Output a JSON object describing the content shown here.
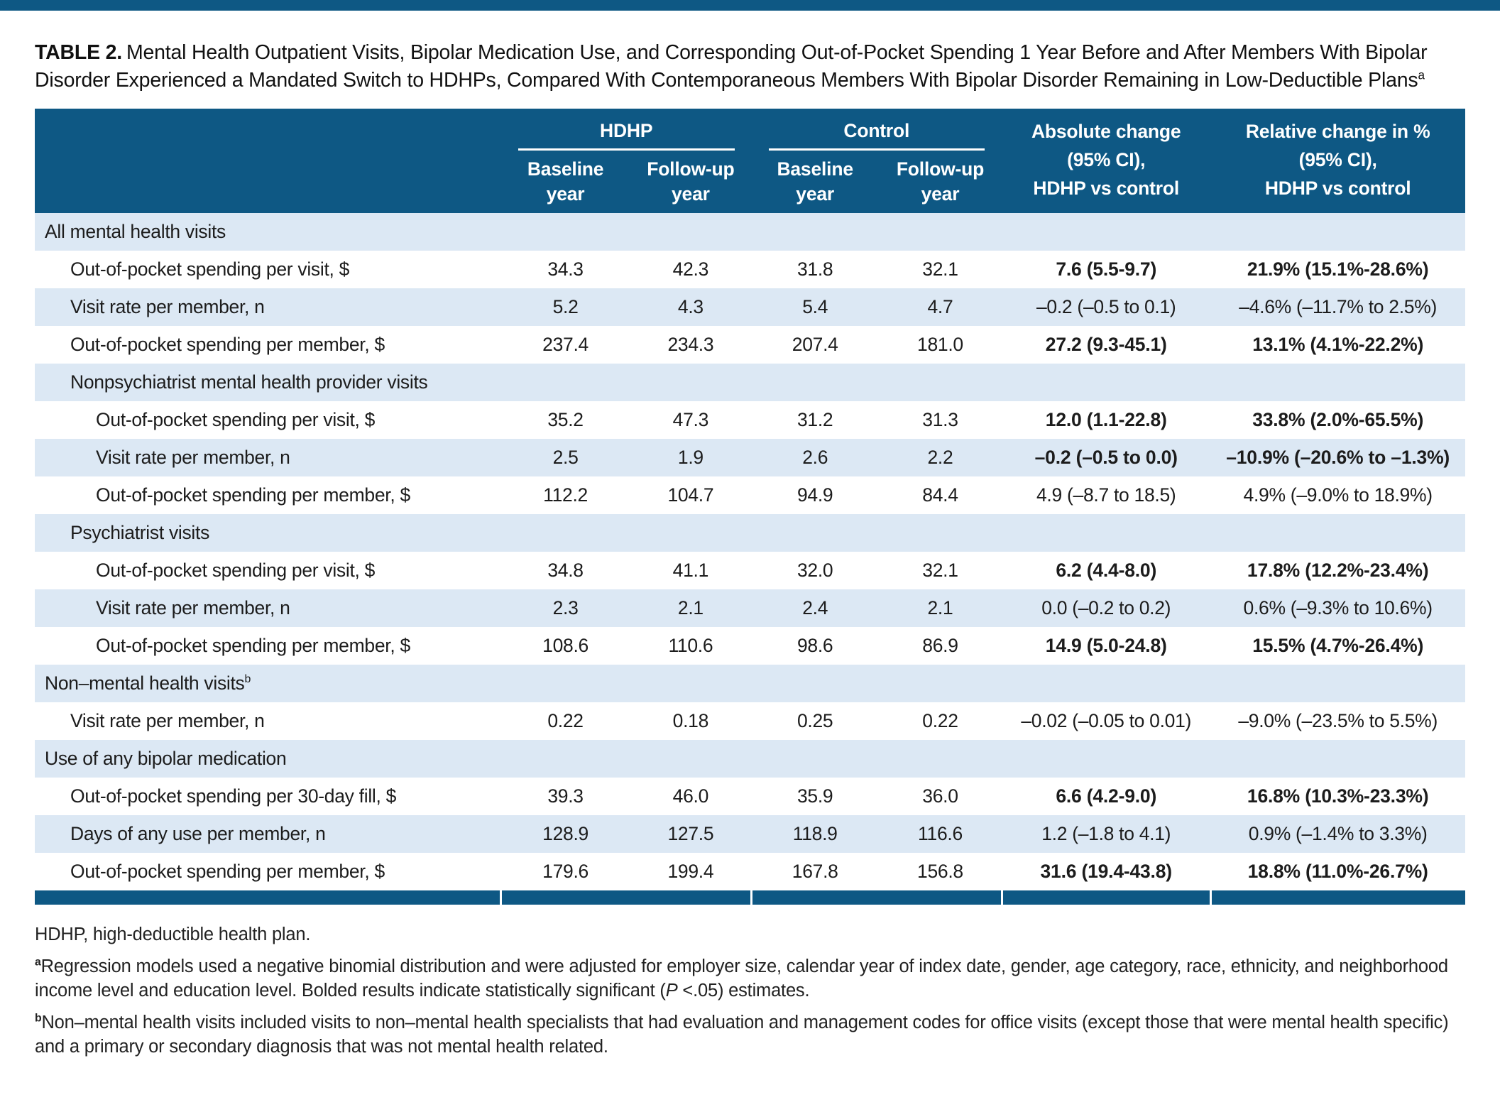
{
  "colors": {
    "header_bg": "#0e5884",
    "row_alt_bg": "#dce8f4",
    "footer_bar_bg": "#0e5884",
    "text": "#1c1c1c"
  },
  "title": {
    "label": "TABLE 2.",
    "text": "Mental Health Outpatient Visits, Bipolar Medication Use, and Corresponding Out-of-Pocket Spending 1 Year Before and After Members With Bipolar Disorder Experienced a Mandated Switch to HDHPs, Compared With Contemporaneous Members With Bipolar Disorder Remaining in Low-Deductible Plans",
    "superscript": "a"
  },
  "table": {
    "groups": [
      {
        "label": "HDHP"
      },
      {
        "label": "Control"
      }
    ],
    "year_columns": [
      {
        "lines": [
          "Baseline",
          "year"
        ]
      },
      {
        "lines": [
          "Follow-up",
          "year"
        ]
      },
      {
        "lines": [
          "Baseline",
          "year"
        ]
      },
      {
        "lines": [
          "Follow-up",
          "year"
        ]
      }
    ],
    "change_columns": [
      {
        "lines": [
          "Absolute change",
          "(95% CI),",
          "HDHP vs control"
        ]
      },
      {
        "lines": [
          "Relative change in %",
          "(95% CI),",
          "HDHP vs control"
        ]
      }
    ],
    "rows": [
      {
        "label": "All mental health visits",
        "section": true,
        "indent": 0
      },
      {
        "label": "Out-of-pocket spending per visit, $",
        "indent": 1,
        "values": [
          "34.3",
          "42.3",
          "31.8",
          "32.1"
        ],
        "abs": "7.6 (5.5-9.7)",
        "rel": "21.9% (15.1%-28.6%)",
        "significant": true
      },
      {
        "label": "Visit rate per member, n",
        "indent": 1,
        "values": [
          "5.2",
          "4.3",
          "5.4",
          "4.7"
        ],
        "abs": "–0.2 (–0.5 to 0.1)",
        "rel": "–4.6% (–11.7% to 2.5%)",
        "significant": false
      },
      {
        "label": "Out-of-pocket spending per member, $",
        "indent": 1,
        "values": [
          "237.4",
          "234.3",
          "207.4",
          "181.0"
        ],
        "abs": "27.2 (9.3-45.1)",
        "rel": "13.1% (4.1%-22.2%)",
        "significant": true
      },
      {
        "label": "Nonpsychiatrist mental health provider visits",
        "section": true,
        "indent": 1
      },
      {
        "label": "Out-of-pocket spending per visit, $",
        "indent": 2,
        "values": [
          "35.2",
          "47.3",
          "31.2",
          "31.3"
        ],
        "abs": "12.0 (1.1-22.8)",
        "rel": "33.8% (2.0%-65.5%)",
        "significant": true
      },
      {
        "label": "Visit rate per member, n",
        "indent": 2,
        "values": [
          "2.5",
          "1.9",
          "2.6",
          "2.2"
        ],
        "abs": "–0.2 (–0.5 to 0.0)",
        "rel": "–10.9% (–20.6% to –1.3%)",
        "significant": true
      },
      {
        "label": "Out-of-pocket spending per member, $",
        "indent": 2,
        "values": [
          "112.2",
          "104.7",
          "94.9",
          "84.4"
        ],
        "abs": "4.9 (–8.7 to 18.5)",
        "rel": "4.9% (–9.0% to 18.9%)",
        "significant": false
      },
      {
        "label": "Psychiatrist visits",
        "section": true,
        "indent": 1
      },
      {
        "label": "Out-of-pocket spending per visit, $",
        "indent": 2,
        "values": [
          "34.8",
          "41.1",
          "32.0",
          "32.1"
        ],
        "abs": "6.2 (4.4-8.0)",
        "rel": "17.8% (12.2%-23.4%)",
        "significant": true
      },
      {
        "label": "Visit rate per member, n",
        "indent": 2,
        "values": [
          "2.3",
          "2.1",
          "2.4",
          "2.1"
        ],
        "abs": "0.0 (–0.2 to 0.2)",
        "rel": "0.6% (–9.3% to 10.6%)",
        "significant": false
      },
      {
        "label": "Out-of-pocket spending per member, $",
        "indent": 2,
        "values": [
          "108.6",
          "110.6",
          "98.6",
          "86.9"
        ],
        "abs": "14.9 (5.0-24.8)",
        "rel": "15.5% (4.7%-26.4%)",
        "significant": true
      },
      {
        "label": "Non–mental health visits",
        "sup": "b",
        "section": true,
        "indent": 0
      },
      {
        "label": "Visit rate per member, n",
        "indent": 1,
        "values": [
          "0.22",
          "0.18",
          "0.25",
          "0.22"
        ],
        "abs": "–0.02 (–0.05 to 0.01)",
        "rel": "–9.0% (–23.5% to 5.5%)",
        "significant": false
      },
      {
        "label": "Use of any bipolar medication",
        "section": true,
        "indent": 0
      },
      {
        "label": "Out-of-pocket spending per 30-day fill, $",
        "indent": 1,
        "values": [
          "39.3",
          "46.0",
          "35.9",
          "36.0"
        ],
        "abs": "6.6 (4.2-9.0)",
        "rel": "16.8% (10.3%-23.3%)",
        "significant": true
      },
      {
        "label": "Days of any use per member, n",
        "indent": 1,
        "values": [
          "128.9",
          "127.5",
          "118.9",
          "116.6"
        ],
        "abs": "1.2 (–1.8 to 4.1)",
        "rel": "0.9% (–1.4% to 3.3%)",
        "significant": false
      },
      {
        "label": "Out-of-pocket spending per member, $",
        "indent": 1,
        "values": [
          "179.6",
          "199.4",
          "167.8",
          "156.8"
        ],
        "abs": "31.6 (19.4-43.8)",
        "rel": "18.8% (11.0%-26.7%)",
        "significant": true
      }
    ]
  },
  "footnotes": {
    "abbrev": "HDHP, high-deductible health plan.",
    "a": {
      "sup": "a",
      "text1": "Regression models used a negative binomial distribution and were adjusted for employer size, calendar year of index date, gender, age category, race, ethnicity, and neighborhood income level and education level. Bolded results indicate statistically significant (",
      "italic": "P",
      "text2": " <.05) estimates."
    },
    "b": {
      "sup": "b",
      "text": "Non–mental health visits included visits to non–mental health specialists that had evaluation and management codes for office visits (except those that were mental health specific) and a primary or secondary diagnosis that was not mental health related."
    }
  }
}
